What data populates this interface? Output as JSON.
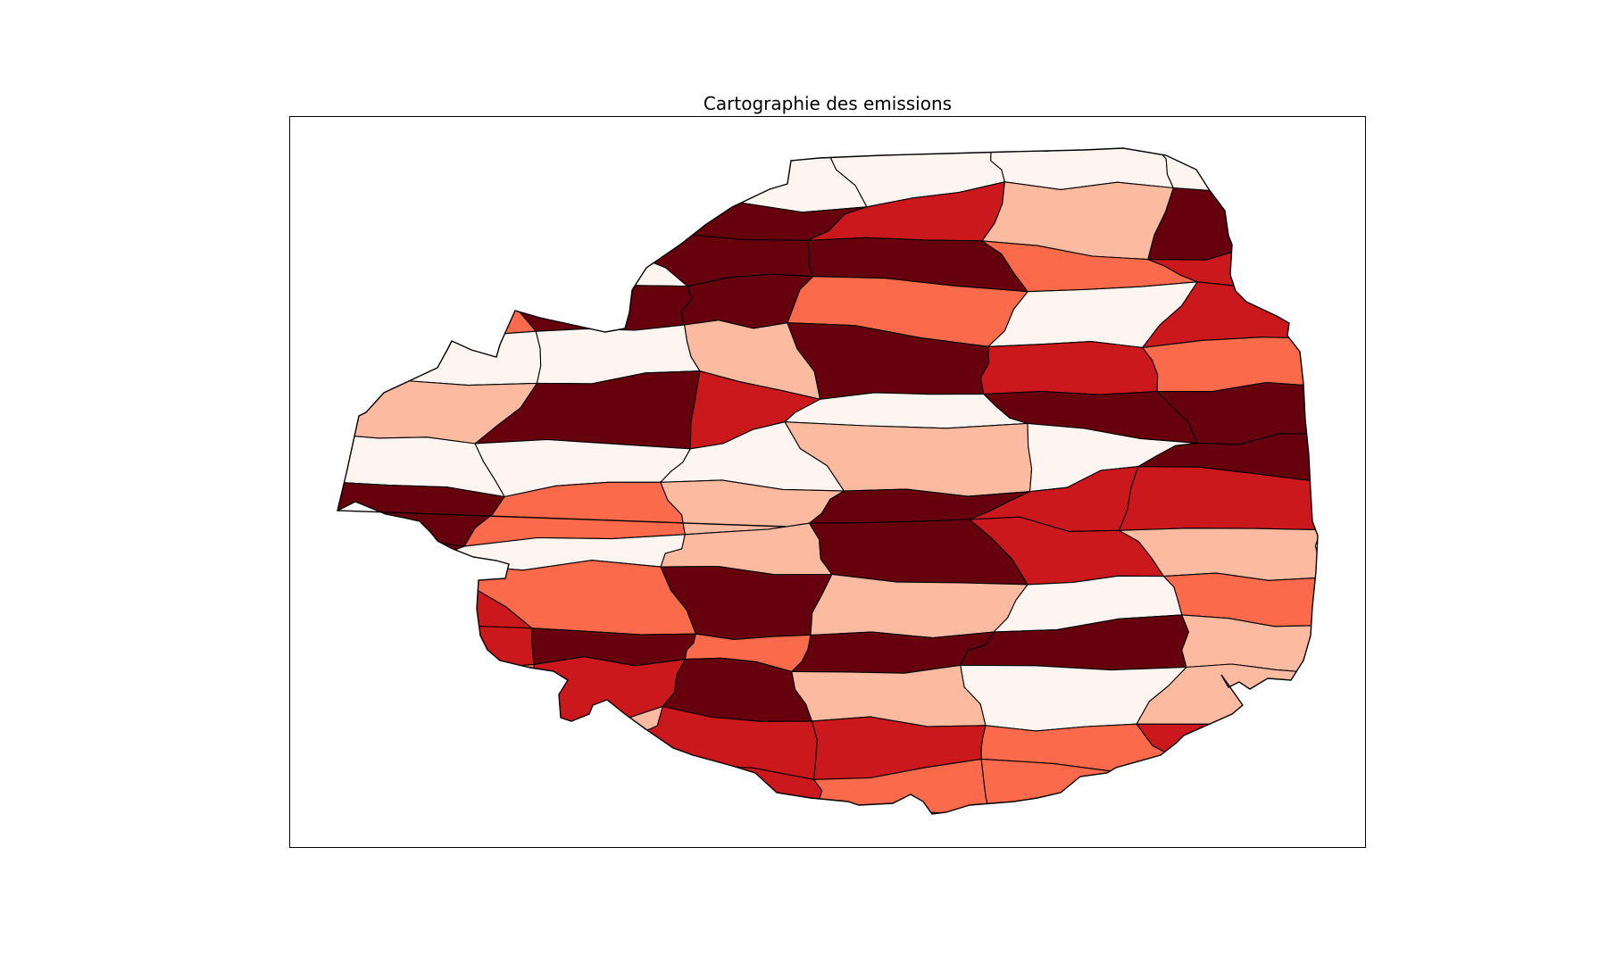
{
  "title": "Cartographie des emissions",
  "colormap": {
    "name": "Reds",
    "classes": [
      "#fff5f0",
      "#fcbba1",
      "#fb6a4a",
      "#cb181d",
      "#67000d"
    ]
  },
  "region_levels": [
    0,
    0,
    0,
    0,
    0,
    0,
    3,
    2,
    4,
    3,
    1,
    4,
    4,
    0,
    4,
    4,
    2,
    3,
    2,
    4,
    4,
    2,
    0,
    3,
    0,
    0,
    1,
    4,
    3,
    2,
    1,
    4,
    3,
    0,
    4,
    4,
    0,
    0,
    0,
    1,
    0,
    4,
    4,
    2,
    1,
    4,
    3,
    3,
    4,
    0,
    1,
    4,
    3,
    1,
    3,
    2,
    4,
    1,
    0,
    2,
    3,
    4,
    2,
    4,
    4,
    1,
    2,
    3,
    4,
    1,
    0,
    1,
    2,
    1,
    3,
    3,
    2,
    3,
    4,
    1,
    3,
    2,
    2,
    0
  ]
}
